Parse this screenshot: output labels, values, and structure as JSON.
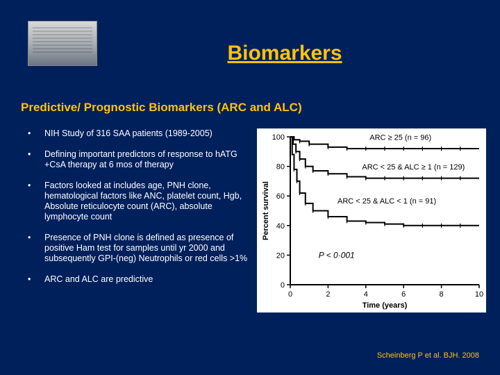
{
  "colors": {
    "background": "#00205b",
    "accent": "#ffc20e",
    "text_light": "#ffffff",
    "chart_bg": "#ffffff",
    "chart_line": "#000000"
  },
  "title": "Biomarkers",
  "subtitle": "Predictive/ Prognostic Biomarkers (ARC and ALC)",
  "bullets": [
    "NIH Study of 316 SAA patients (1989-2005)",
    "Defining important predictors of response to hATG +CsA therapy at 6 mos of therapy",
    "Factors looked at includes age, PNH clone, hematological factors like ANC, platelet count, Hgb, Absolute reticulocyte count (ARC), absolute lymphocyte count",
    "Presence of PNH clone is defined as presence of positive Ham test for samples until yr 2000 and subsequently GPI-(neg) Neutrophils or red cells >1%",
    "ARC and ALC are predictive"
  ],
  "chart": {
    "type": "survival-curve",
    "xlabel": "Time (years)",
    "ylabel": "Percent survival",
    "xlim": [
      0,
      10
    ],
    "ylim": [
      0,
      100
    ],
    "xticks": [
      0,
      2,
      4,
      6,
      8,
      10
    ],
    "yticks": [
      0,
      20,
      40,
      60,
      80,
      100
    ],
    "pvalue": "P < 0·001",
    "line_color": "#000000",
    "line_width": 2,
    "tick_fontsize": 11,
    "label_fontsize": 12,
    "series": [
      {
        "label": "ARC ≥ 25 (n = 96)",
        "label_x": 4.2,
        "label_y": 98,
        "points": [
          [
            0,
            100
          ],
          [
            0.2,
            98
          ],
          [
            0.5,
            97
          ],
          [
            1,
            95
          ],
          [
            2,
            93
          ],
          [
            3,
            92
          ],
          [
            4,
            92
          ],
          [
            5,
            92
          ],
          [
            6,
            92
          ],
          [
            7,
            92
          ],
          [
            8,
            92
          ],
          [
            9,
            92
          ],
          [
            10,
            92
          ]
        ]
      },
      {
        "label": "ARC < 25 & ALC ≥ 1 (n = 129)",
        "label_x": 3.8,
        "label_y": 78,
        "points": [
          [
            0,
            100
          ],
          [
            0.15,
            95
          ],
          [
            0.3,
            90
          ],
          [
            0.5,
            85
          ],
          [
            0.8,
            80
          ],
          [
            1.2,
            77
          ],
          [
            2,
            75
          ],
          [
            3,
            73
          ],
          [
            4,
            72
          ],
          [
            5,
            72
          ],
          [
            6,
            72
          ],
          [
            7,
            72
          ],
          [
            8,
            72
          ],
          [
            9,
            72
          ],
          [
            10,
            72
          ]
        ]
      },
      {
        "label": "ARC < 25 & ALC < 1 (n = 91)",
        "label_x": 2.5,
        "label_y": 55,
        "points": [
          [
            0,
            100
          ],
          [
            0.1,
            88
          ],
          [
            0.2,
            78
          ],
          [
            0.35,
            70
          ],
          [
            0.5,
            62
          ],
          [
            0.8,
            55
          ],
          [
            1.2,
            50
          ],
          [
            2,
            46
          ],
          [
            3,
            43
          ],
          [
            4,
            42
          ],
          [
            5,
            41
          ],
          [
            6,
            40
          ],
          [
            7,
            40
          ],
          [
            8,
            40
          ],
          [
            9,
            40
          ],
          [
            10,
            40
          ]
        ]
      }
    ]
  },
  "citation": "Scheinberg P et al. BJH. 2008"
}
